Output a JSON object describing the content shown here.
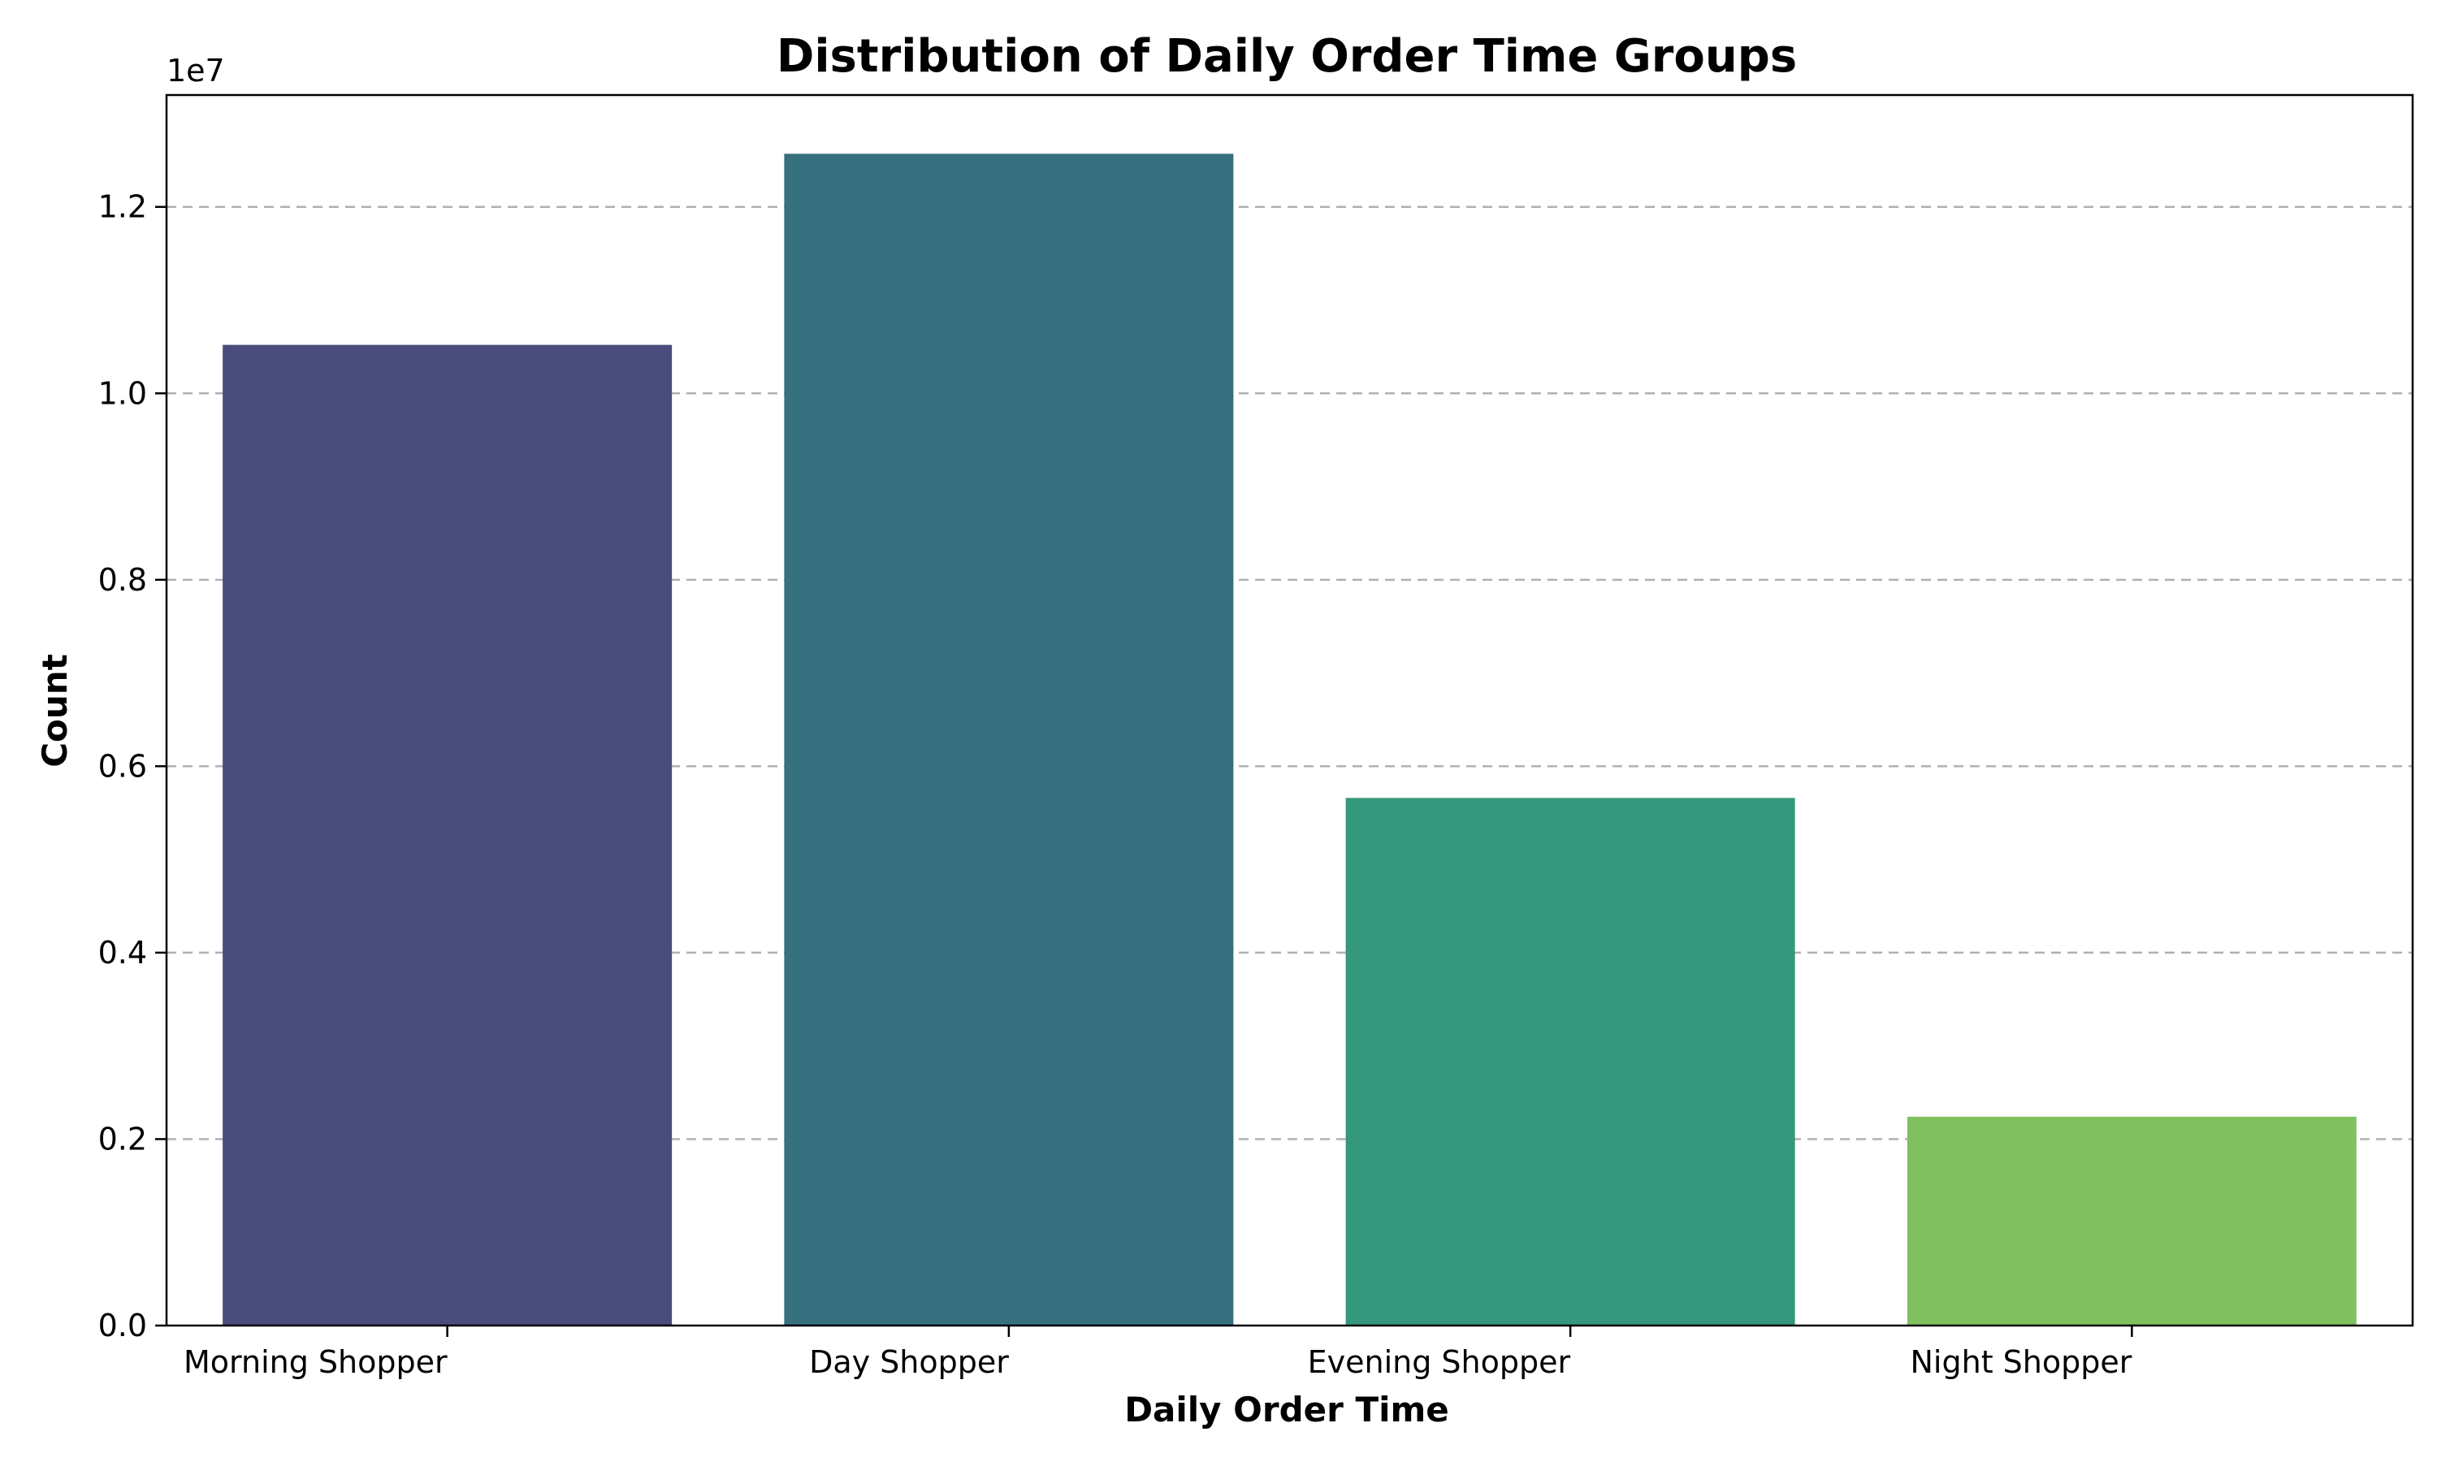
{
  "chart_data": {
    "type": "bar",
    "title": "Distribution of Daily Order Time Groups",
    "xlabel": "Daily Order Time",
    "ylabel": "Count",
    "y_offset_label": "1e7",
    "categories": [
      "Morning Shopper",
      "Day Shopper",
      "Evening Shopper",
      "Night Shopper"
    ],
    "values": [
      10520000,
      12570000,
      5660000,
      2240000
    ],
    "colors": [
      "#4a4c7b",
      "#37707f",
      "#35977b",
      "#80c061"
    ],
    "ylim": [
      0,
      13200000
    ],
    "yticks": [
      0,
      2000000,
      4000000,
      6000000,
      8000000,
      10000000,
      12000000
    ],
    "ytick_labels": [
      "0.0",
      "0.2",
      "0.4",
      "0.6",
      "0.8",
      "1.0",
      "1.2"
    ],
    "grid": "y-dashed",
    "legend": "none"
  }
}
